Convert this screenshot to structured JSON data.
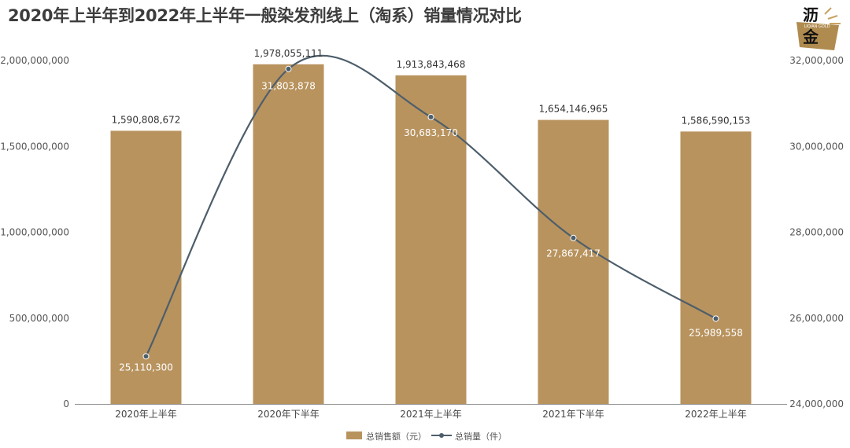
{
  "title": "2020年上半年到2022年上半年一般染发剂线上（淘系）销量情况对比",
  "logo": {
    "text_top": "沥",
    "text_bottom": "金",
    "tagline": "LIQIAN GOLD"
  },
  "colors": {
    "bar": "#b8935e",
    "line": "#4d5e6b",
    "axis": "#999999"
  },
  "chart_data": {
    "type": "bar",
    "categories": [
      "2020年上半年",
      "2020年下半年",
      "2021年上半年",
      "2021年下半年",
      "2022年上半年"
    ],
    "series": [
      {
        "name": "总销售额（元）",
        "type": "bar",
        "axis": "left",
        "values": [
          1590808672,
          1978055111,
          1913843468,
          1654146965,
          1586590153
        ],
        "labels": [
          "1,590,808,672",
          "1,978,055,111",
          "1,913,843,468",
          "1,654,146,965",
          "1,586,590,153"
        ]
      },
      {
        "name": "总销量（件）",
        "type": "line",
        "axis": "right",
        "smooth": true,
        "values": [
          25110300,
          31803878,
          30683170,
          27867417,
          25989558
        ],
        "labels": [
          "25,110,300",
          "31,803,878",
          "30,683,170",
          "27,867,417",
          "25,989,558"
        ]
      }
    ],
    "y_left": {
      "lim": [
        0,
        2000000000
      ],
      "ticks": [
        0,
        500000000,
        1000000000,
        1500000000,
        2000000000
      ],
      "tick_labels": [
        "0",
        "500,000,000",
        "1,000,000,000",
        "1,500,000,000",
        "2,000,000,000"
      ]
    },
    "y_right": {
      "lim": [
        24000000,
        32000000
      ],
      "ticks": [
        24000000,
        26000000,
        28000000,
        30000000,
        32000000
      ],
      "tick_labels": [
        "24,000,000",
        "26,000,000",
        "28,000,000",
        "30,000,000",
        "32,000,000"
      ]
    },
    "grid": false,
    "legend_position": "bottom-center"
  }
}
